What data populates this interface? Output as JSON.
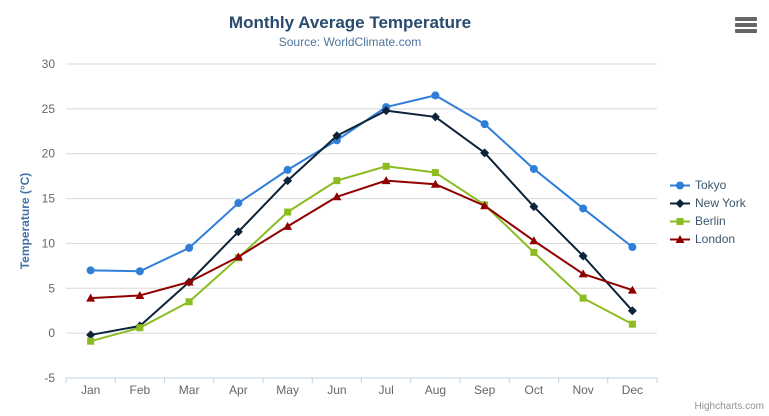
{
  "chart": {
    "credits_label": "Highcharts.com",
    "context_menu_icon": "hamburger-icon"
  },
  "chart_data": {
    "type": "line",
    "title": "Monthly Average Temperature",
    "subtitle": "Source: WorldClimate.com",
    "xlabel": "",
    "ylabel": "Temperature (°C)",
    "categories": [
      "Jan",
      "Feb",
      "Mar",
      "Apr",
      "May",
      "Jun",
      "Jul",
      "Aug",
      "Sep",
      "Oct",
      "Nov",
      "Dec"
    ],
    "ylim": [
      -5,
      30
    ],
    "yticks": [
      -5,
      0,
      5,
      10,
      15,
      20,
      25,
      30
    ],
    "grid": true,
    "legend_position": "right",
    "series": [
      {
        "name": "Tokyo",
        "color": "#2f7ed8",
        "symbol": "circle",
        "values": [
          7.0,
          6.9,
          9.5,
          14.5,
          18.2,
          21.5,
          25.2,
          26.5,
          23.3,
          18.3,
          13.9,
          9.6
        ]
      },
      {
        "name": "New York",
        "color": "#0d233a",
        "symbol": "diamond",
        "values": [
          -0.2,
          0.8,
          5.7,
          11.3,
          17.0,
          22.0,
          24.8,
          24.1,
          20.1,
          14.1,
          8.6,
          2.5
        ]
      },
      {
        "name": "Berlin",
        "color": "#8bbc21",
        "symbol": "square",
        "values": [
          -0.9,
          0.6,
          3.5,
          8.4,
          13.5,
          17.0,
          18.6,
          17.9,
          14.3,
          9.0,
          3.9,
          1.0
        ]
      },
      {
        "name": "London",
        "color": "#910000",
        "symbol": "triangle",
        "values": [
          3.9,
          4.2,
          5.7,
          8.5,
          11.9,
          15.2,
          17.0,
          16.6,
          14.2,
          10.3,
          6.6,
          4.8
        ]
      }
    ]
  },
  "colors": {
    "background": "#ffffff",
    "title": "#274b6d",
    "subtitle": "#4d759e",
    "axis_title": "#4572a7",
    "tick_label": "#666666",
    "grid": "#d8d8d8",
    "axis_line": "#c0d0e0",
    "legend_text": "#3e576f",
    "credits": "#909090",
    "menu_icon": "#666666"
  }
}
